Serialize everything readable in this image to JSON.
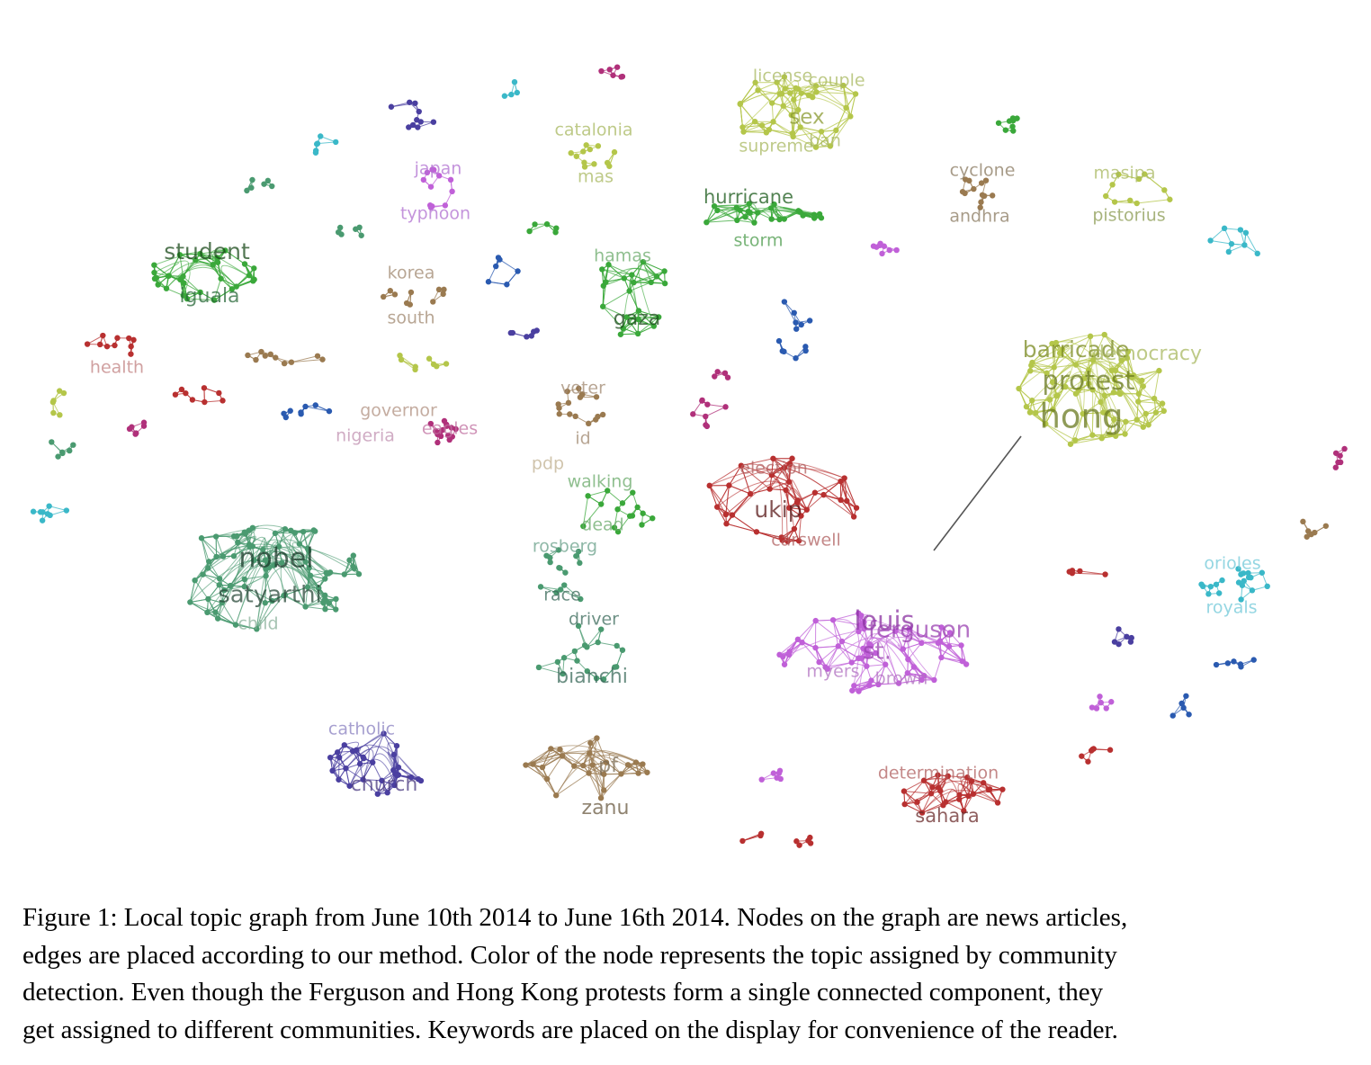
{
  "graph": {
    "keywords": [
      "license",
      "couple",
      "sex",
      "supreme",
      "ban",
      "catalonia",
      "mas",
      "japan",
      "typhoon",
      "hurricane",
      "storm",
      "cyclone",
      "andhra",
      "masipa",
      "pistorius",
      "student",
      "iguala",
      "hamas",
      "gaza",
      "korea",
      "south",
      "health",
      "barricade",
      "democracy",
      "protest",
      "hong",
      "governor",
      "nigeria",
      "eagles",
      "voter",
      "id",
      "pdp",
      "walking",
      "dead",
      "election",
      "ukip",
      "carswell",
      "rosberg",
      "race",
      "driver",
      "bianchi",
      "nobel",
      "satyarthi",
      "child",
      "louis",
      "ferguson",
      "st.",
      "myers",
      "brown",
      "orioles",
      "royals",
      "catholic",
      "church",
      "pf",
      "zanu",
      "determination",
      "sahara"
    ]
  },
  "caption": {
    "lines": [
      "Figure 1: Local topic graph from June 10th 2014 to June 16th 2014. Nodes on the graph are news articles,",
      "edges are placed according to our method. Color of the node represents the topic assigned by community",
      "detection. Even though the Ferguson and Hong Kong protests form a single connected component, they",
      "get assigned to different communities. Keywords are placed on the display for convenience of the reader."
    ]
  }
}
